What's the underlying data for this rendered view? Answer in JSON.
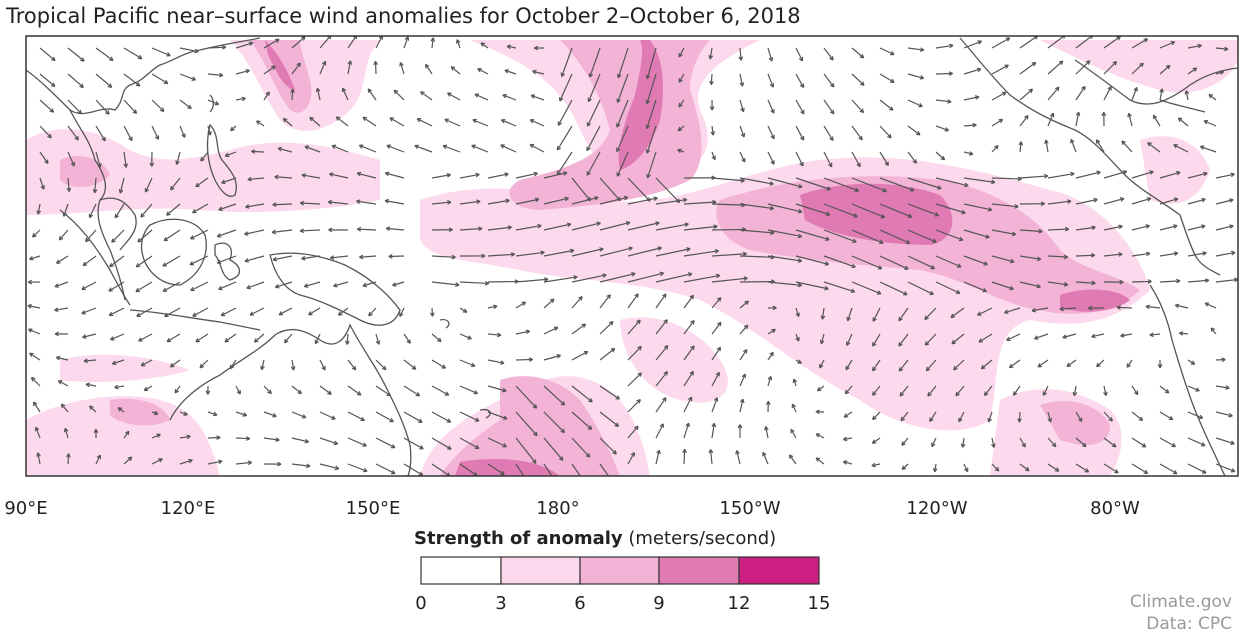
{
  "title": "Tropical Pacific near–surface wind anomalies for October 2–October 6, 2018",
  "longitude_labels": [
    "90°E",
    "120°E",
    "150°E",
    "180°",
    "150°W",
    "120°W",
    "80°W"
  ],
  "legend": {
    "title_bold": "Strength of anomaly",
    "title_units": "(meters/second)",
    "ticks": [
      "0",
      "3",
      "6",
      "9",
      "12",
      "15"
    ],
    "colors": [
      "#ffffff",
      "#fcd9ec",
      "#f3b3d6",
      "#e07ab3",
      "#cc1f82"
    ]
  },
  "credit": {
    "line1": "Climate.gov",
    "line2": "Data: CPC"
  },
  "colors": {
    "arrow": "#555555",
    "land_outline": "#555555",
    "frame": "#333333"
  }
}
